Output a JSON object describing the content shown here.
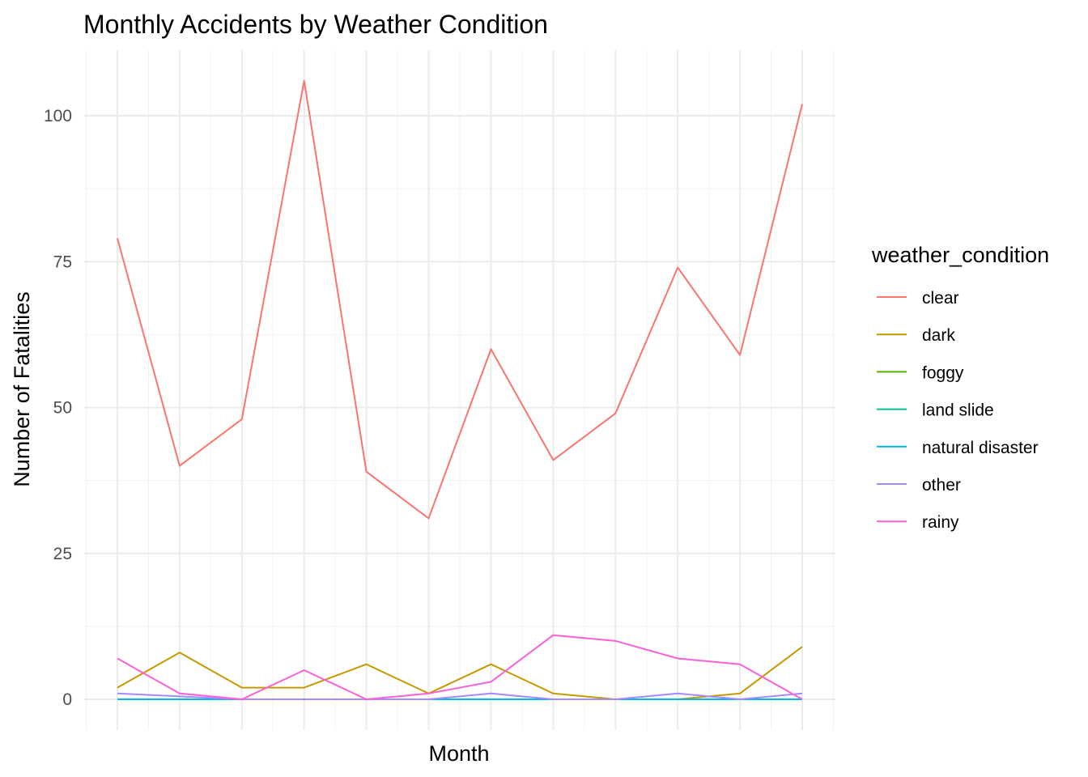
{
  "chart_data": {
    "type": "line",
    "title": "Monthly Accidents by Weather Condition",
    "xlabel": "Month",
    "ylabel": "Number of Fatalities",
    "x": [
      1,
      2,
      3,
      4,
      5,
      6,
      7,
      8,
      9,
      10,
      11,
      12
    ],
    "ylim": [
      -5,
      110
    ],
    "yticks": [
      0,
      25,
      50,
      75,
      100
    ],
    "grid": true,
    "legend": {
      "title": "weather_condition",
      "position": "right"
    },
    "series": [
      {
        "name": "clear",
        "color": "#F8766D",
        "values": [
          79,
          40,
          48,
          106,
          39,
          31,
          60,
          41,
          49,
          74,
          59,
          102
        ]
      },
      {
        "name": "dark",
        "color": "#C49A00",
        "values": [
          2,
          8,
          2,
          2,
          6,
          1,
          6,
          1,
          0,
          0,
          1,
          9
        ]
      },
      {
        "name": "foggy",
        "color": "#53B400",
        "values": [
          0,
          0,
          0,
          0,
          0,
          0,
          0,
          0,
          0,
          0,
          0,
          0
        ]
      },
      {
        "name": "land slide",
        "color": "#00C094",
        "values": [
          0,
          0,
          0,
          0,
          0,
          0,
          0,
          0,
          0,
          0,
          0,
          0
        ]
      },
      {
        "name": "natural disaster",
        "color": "#00B6EB",
        "values": [
          0,
          0,
          0,
          0,
          0,
          0,
          0,
          0,
          0,
          0,
          0,
          0
        ]
      },
      {
        "name": "other",
        "color": "#A58AFF",
        "values": [
          1,
          0.5,
          0,
          0,
          0,
          0,
          1,
          0,
          0,
          1,
          0,
          1
        ]
      },
      {
        "name": "rainy",
        "color": "#FB61D7",
        "values": [
          7,
          1,
          0,
          5,
          0,
          1,
          3,
          11,
          10,
          7,
          6,
          0
        ]
      }
    ]
  }
}
